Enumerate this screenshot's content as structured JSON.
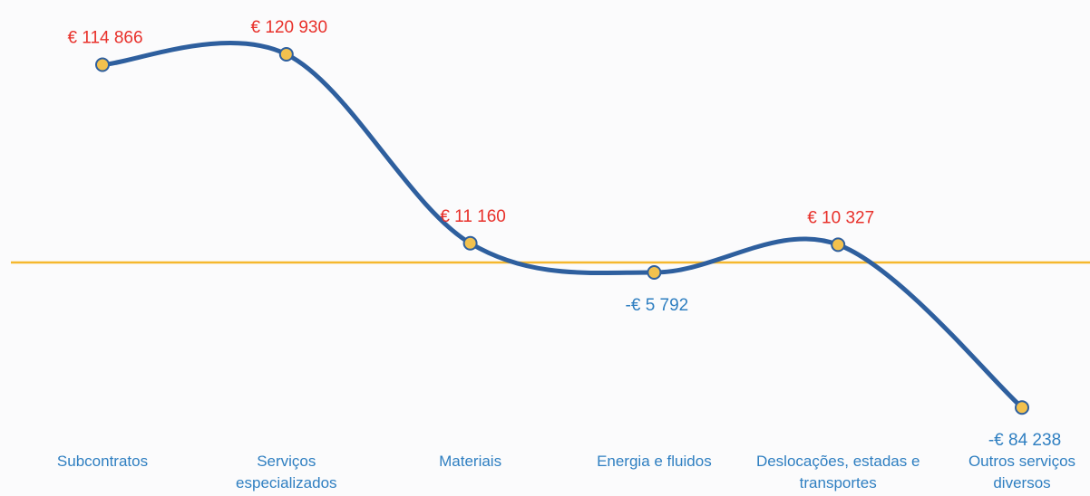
{
  "chart_data": {
    "type": "line",
    "categories": [
      "Subcontratos",
      "Serviços especializados",
      "Materiais",
      "Energia e fluidos",
      "Deslocações, estadas e transportes",
      "Outros serviços diversos"
    ],
    "values": [
      114866,
      120930,
      11160,
      -5792,
      10327,
      -84238
    ],
    "value_labels": [
      "€ 114 866",
      "€ 120 930",
      "€ 11 160",
      "-€ 5 792",
      "€ 10 327",
      "-€ 84 238"
    ],
    "color": "#2e5f9e",
    "marker_color": "#f2c14e",
    "zero_line_color": "#f5b82e",
    "label_colors": {
      "positive": "#e8302a",
      "negative": "#2f7fc1"
    },
    "category_color": "#2f7fc1",
    "ylim": [
      -100000,
      140000
    ]
  }
}
